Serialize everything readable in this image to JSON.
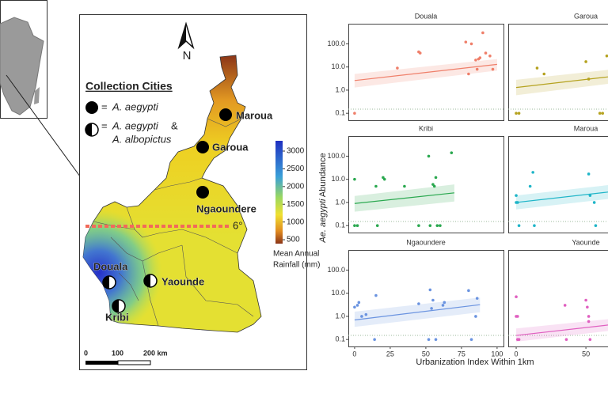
{
  "map": {
    "north": "N",
    "legend_title": "Collection Cities",
    "legend_eq": "=",
    "legend_species_1": "A. aegypti",
    "legend_and": "&",
    "legend_species_2": "A. albopictus",
    "cities": [
      {
        "name": "Maroua",
        "symbol": "full"
      },
      {
        "name": "Garoua",
        "symbol": "full"
      },
      {
        "name": "Ngaoundere",
        "symbol": "full"
      },
      {
        "name": "Douala",
        "symbol": "half"
      },
      {
        "name": "Yaounde",
        "symbol": "half"
      },
      {
        "name": "Kribi",
        "symbol": "half"
      }
    ],
    "latitude_label": "6°",
    "colorbar": {
      "lim": [
        390,
        3290
      ],
      "ticks": [
        500,
        1000,
        1500,
        2000,
        2500,
        3000
      ],
      "title": [
        "Mean Annual",
        "Rainfall (mm)"
      ]
    },
    "scale_bar": [
      "0",
      "100",
      "200 km"
    ]
  },
  "axis_labels": {
    "ylabel": [
      "Ae. aegypti",
      "Abundance"
    ],
    "xlabel": "Urbanization Index Within 1km"
  },
  "chart_data": [
    {
      "type": "scatter",
      "title": "Douala",
      "color": "#ef7f6a",
      "log_y": true,
      "xlim": [
        -4.4,
        104.5
      ],
      "ylim": [
        0.05,
        740
      ],
      "yticks": [
        {
          "value": 0.1,
          "label": "0.1"
        },
        {
          "value": 1,
          "label": "1.0"
        },
        {
          "value": 10,
          "label": "10.0"
        },
        {
          "value": 100,
          "label": "100.0"
        }
      ],
      "x": [
        0,
        30,
        45,
        46,
        78,
        80,
        82,
        85,
        86,
        87,
        88,
        90,
        92,
        95,
        97
      ],
      "y": [
        0.1,
        9,
        45,
        40,
        120,
        5,
        100,
        20,
        8,
        22,
        25,
        300,
        40,
        30,
        8
      ],
      "fit": {
        "x": [
          0,
          100
        ],
        "y": [
          2.6,
          13
        ],
        "lower": [
          1.3,
          7
        ],
        "upper": [
          5,
          22
        ]
      },
      "ref_line": 0.15
    },
    {
      "type": "scatter",
      "title": "Garoua",
      "color": "#b5a21f",
      "log_y": true,
      "xlim": [
        -5.7,
        105.6
      ],
      "ylim": [
        0.05,
        740
      ],
      "x": [
        0,
        2,
        15,
        20,
        50,
        52,
        60,
        62,
        65,
        67
      ],
      "y": [
        0.1,
        0.1,
        9,
        5,
        17,
        3,
        0.1,
        0.1,
        30,
        4
      ],
      "fit": {
        "x": [
          0,
          70
        ],
        "y": [
          1.3,
          4
        ],
        "lower": [
          0.6,
          2
        ],
        "upper": [
          2.8,
          8
        ]
      },
      "ref_line": 0.15
    },
    {
      "type": "scatter",
      "title": "Kribi",
      "color": "#2aa84f",
      "log_y": true,
      "xlim": [
        -4.4,
        104.5
      ],
      "ylim": [
        0.05,
        740
      ],
      "yticks": [
        {
          "value": 0.1,
          "label": "0.1"
        },
        {
          "value": 1,
          "label": "1.0"
        },
        {
          "value": 10,
          "label": "10.0"
        },
        {
          "value": 100,
          "label": "100.0"
        }
      ],
      "x": [
        0,
        0,
        2,
        15,
        16,
        20,
        21,
        35,
        45,
        52,
        53,
        55,
        56,
        57,
        58,
        60,
        68
      ],
      "y": [
        10,
        0.1,
        0.1,
        5,
        0.1,
        12,
        10,
        5,
        0.1,
        100,
        0.1,
        6,
        5,
        12,
        0.1,
        0.1,
        140
      ],
      "fit": {
        "x": [
          0,
          70
        ],
        "y": [
          0.9,
          2.6
        ],
        "lower": [
          0.4,
          1.1
        ],
        "upper": [
          1.9,
          6
        ]
      },
      "ref_line": 0.15
    },
    {
      "type": "scatter",
      "title": "Maroua",
      "color": "#1fb5c8",
      "log_y": true,
      "xlim": [
        -5.7,
        105.6
      ],
      "ylim": [
        0.05,
        740
      ],
      "x": [
        0,
        0,
        1,
        2,
        10,
        12,
        13,
        52,
        53,
        56,
        57
      ],
      "y": [
        2,
        1,
        1,
        0.1,
        5,
        20,
        0.1,
        17,
        2,
        1,
        0.1
      ],
      "fit": {
        "x": [
          0,
          70
        ],
        "y": [
          1,
          3
        ],
        "lower": [
          0.5,
          1.5
        ],
        "upper": [
          2,
          6
        ]
      },
      "ref_line": 0.15
    },
    {
      "type": "scatter",
      "title": "Ngaoundere",
      "color": "#6a93e0",
      "log_y": true,
      "xlim": [
        -4.4,
        104.5
      ],
      "ylim": [
        0.05,
        740
      ],
      "yticks": [
        {
          "value": 0.1,
          "label": "0.1"
        },
        {
          "value": 1,
          "label": "1.0"
        },
        {
          "value": 10,
          "label": "10.0"
        },
        {
          "value": 100,
          "label": "100.0"
        }
      ],
      "xticks": [
        0,
        25,
        50,
        75,
        100
      ],
      "x": [
        0,
        2,
        3,
        5,
        8,
        14,
        15,
        45,
        52,
        53,
        54,
        55,
        57,
        62,
        63,
        80,
        82,
        85,
        86
      ],
      "y": [
        2.5,
        3,
        4,
        1,
        1.2,
        0.1,
        8,
        3.5,
        0.1,
        14,
        2.2,
        5,
        0.1,
        3,
        4,
        13,
        0.1,
        1,
        6
      ],
      "fit": {
        "x": [
          0,
          88
        ],
        "y": [
          0.7,
          3.2
        ],
        "lower": [
          0.35,
          1.5
        ],
        "upper": [
          1.6,
          6.5
        ]
      },
      "ref_line": 0.15
    },
    {
      "type": "scatter",
      "title": "Yaounde",
      "color": "#e05fc0",
      "log_y": true,
      "xlim": [
        -5.7,
        105.6
      ],
      "ylim": [
        0.05,
        740
      ],
      "xticks": [
        0,
        50
      ],
      "x": [
        0,
        0,
        1,
        1,
        2,
        35,
        36,
        50,
        51,
        52,
        53,
        52
      ],
      "y": [
        7,
        1,
        1,
        0.1,
        0.1,
        3,
        0.1,
        5,
        2.5,
        1,
        0.1,
        0.6
      ],
      "fit": {
        "x": [
          0,
          70
        ],
        "y": [
          0.15,
          0.45
        ],
        "lower": [
          0.08,
          0.25
        ],
        "upper": [
          0.3,
          0.8
        ]
      },
      "ref_line": 0.15
    }
  ]
}
